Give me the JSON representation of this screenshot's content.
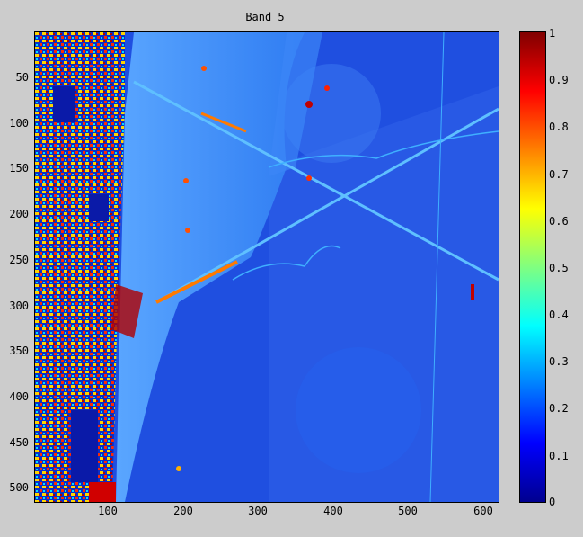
{
  "figure": {
    "title": "Band 5",
    "y_ticks": [
      "50",
      "100",
      "150",
      "200",
      "250",
      "300",
      "350",
      "400",
      "450",
      "500"
    ],
    "x_ticks": [
      "100",
      "200",
      "300",
      "400",
      "500",
      "600"
    ],
    "colorbar_ticks": [
      "0",
      "0.1",
      "0.2",
      "0.3",
      "0.4",
      "0.5",
      "0.6",
      "0.7",
      "0.8",
      "0.9",
      "1"
    ],
    "colormap": "jet"
  }
}
